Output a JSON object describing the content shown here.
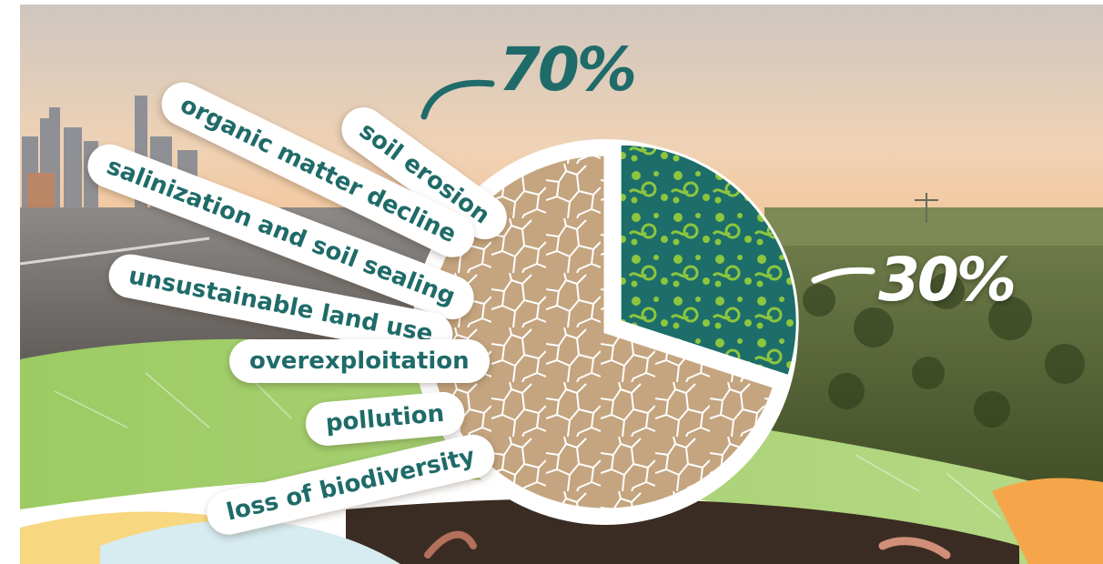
{
  "chart_data": {
    "type": "pie",
    "slices": [
      {
        "label": "70%",
        "value": 70,
        "color": "#c4a57f"
      },
      {
        "label": "30%",
        "value": 30,
        "color": "#3b8a52"
      }
    ],
    "threats": [
      "soil erosion",
      "organic matter decline",
      "salinization and soil sealing",
      "unsustainable land use",
      "overexploitation",
      "pollution",
      "loss of biodiversity"
    ]
  },
  "colors": {
    "text_teal": "#1f6b69",
    "soil": "#c4a57f",
    "healthy_dark": "#1d6e6a",
    "healthy_light": "#8cc63f",
    "sky_top": "#cfc6bf",
    "sky_bottom": "#f3c89e",
    "leaf_green": "#a6cf6d"
  }
}
